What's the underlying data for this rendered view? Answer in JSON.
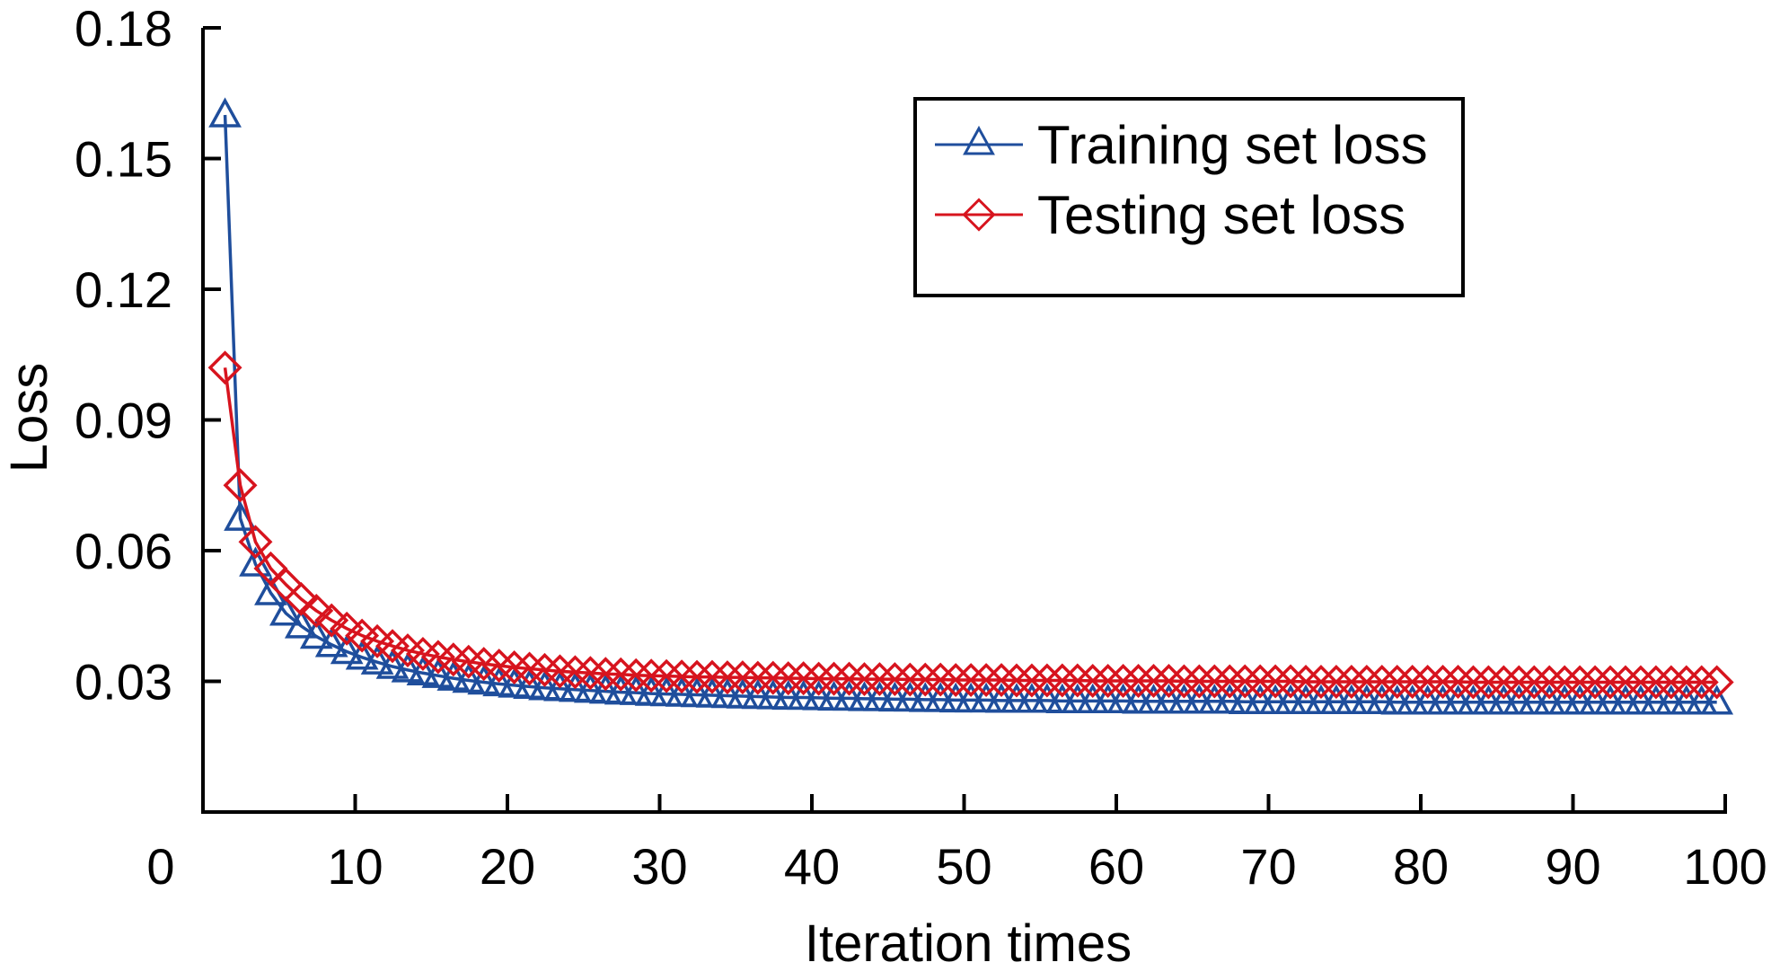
{
  "chart_data": {
    "type": "line",
    "title": "",
    "xlabel": "Iteration times",
    "ylabel": "Loss",
    "xlim": [
      0,
      100
    ],
    "ylim": [
      0,
      0.18
    ],
    "xticks": [
      "0",
      "10",
      "20",
      "30",
      "40",
      "50",
      "60",
      "70",
      "80",
      "90",
      "100"
    ],
    "xtick_values": [
      0,
      10,
      20,
      30,
      40,
      50,
      60,
      70,
      80,
      90,
      100
    ],
    "yticks": [
      "0.03",
      "0.06",
      "0.09",
      "0.12",
      "0.15",
      "0.18"
    ],
    "ytick_values": [
      0.03,
      0.06,
      0.09,
      0.12,
      0.15,
      0.18
    ],
    "grid": false,
    "legend_position": "top-right",
    "x": [
      1,
      2,
      3,
      4,
      5,
      6,
      7,
      8,
      9,
      10,
      11,
      12,
      13,
      14,
      15,
      16,
      17,
      18,
      19,
      20,
      21,
      22,
      23,
      24,
      25,
      26,
      27,
      28,
      29,
      30,
      31,
      32,
      33,
      34,
      35,
      36,
      37,
      38,
      39,
      40,
      41,
      42,
      43,
      44,
      45,
      46,
      47,
      48,
      49,
      50,
      51,
      52,
      53,
      54,
      55,
      56,
      57,
      58,
      59,
      60,
      61,
      62,
      63,
      64,
      65,
      66,
      67,
      68,
      69,
      70,
      71,
      72,
      73,
      74,
      75,
      76,
      77,
      78,
      79,
      80,
      81,
      82,
      83,
      84,
      85,
      86,
      87,
      88,
      89,
      90,
      91,
      92,
      93,
      94,
      95,
      96,
      97,
      98,
      99
    ],
    "series": [
      {
        "name": "Training set loss",
        "color": "#1f4e9c",
        "marker": "triangle",
        "values": [
          0.16,
          0.0674,
          0.0569,
          0.0503,
          0.0456,
          0.0427,
          0.0403,
          0.0384,
          0.0368,
          0.0355,
          0.0344,
          0.0334,
          0.0326,
          0.0319,
          0.0313,
          0.0307,
          0.0302,
          0.0298,
          0.0294,
          0.0291,
          0.0288,
          0.0285,
          0.0283,
          0.0281,
          0.0279,
          0.0277,
          0.0275,
          0.0274,
          0.0272,
          0.0271,
          0.027,
          0.0269,
          0.0268,
          0.0267,
          0.0266,
          0.0265,
          0.0264,
          0.0263,
          0.0263,
          0.0262,
          0.0261,
          0.0261,
          0.026,
          0.026,
          0.0259,
          0.0259,
          0.0258,
          0.0258,
          0.0257,
          0.0257,
          0.0257,
          0.0256,
          0.0256,
          0.0256,
          0.0256,
          0.0255,
          0.0255,
          0.0255,
          0.0255,
          0.0255,
          0.0254,
          0.0254,
          0.0254,
          0.0254,
          0.0254,
          0.0254,
          0.0254,
          0.0253,
          0.0253,
          0.0253,
          0.0253,
          0.0253,
          0.0253,
          0.0253,
          0.0253,
          0.0253,
          0.0253,
          0.0252,
          0.0252,
          0.0252,
          0.0252,
          0.0252,
          0.0252,
          0.0252,
          0.0252,
          0.0252,
          0.0252,
          0.0252,
          0.0252,
          0.0252,
          0.0252,
          0.0252,
          0.0252,
          0.0252,
          0.0252,
          0.0252,
          0.0252,
          0.0252,
          0.0252
        ]
      },
      {
        "name": "Testing set loss",
        "color": "#d7141e",
        "marker": "diamond",
        "values": [
          0.102,
          0.075,
          0.062,
          0.0559,
          0.0522,
          0.0489,
          0.0462,
          0.044,
          0.0421,
          0.0405,
          0.0392,
          0.0381,
          0.0371,
          0.0363,
          0.0356,
          0.035,
          0.0345,
          0.034,
          0.0336,
          0.0332,
          0.0329,
          0.0326,
          0.0323,
          0.0321,
          0.0319,
          0.0317,
          0.0316,
          0.0314,
          0.0313,
          0.0312,
          0.0311,
          0.031,
          0.031,
          0.0309,
          0.0309,
          0.0308,
          0.0308,
          0.0307,
          0.0307,
          0.0306,
          0.0306,
          0.0306,
          0.0305,
          0.0305,
          0.0305,
          0.0304,
          0.0304,
          0.0304,
          0.0303,
          0.0303,
          0.0303,
          0.0303,
          0.0302,
          0.0302,
          0.0302,
          0.0302,
          0.0302,
          0.0301,
          0.0301,
          0.0301,
          0.0301,
          0.0301,
          0.0301,
          0.03,
          0.03,
          0.03,
          0.03,
          0.03,
          0.03,
          0.03,
          0.03,
          0.0299,
          0.0299,
          0.0299,
          0.0299,
          0.0299,
          0.0299,
          0.0299,
          0.0299,
          0.0299,
          0.0299,
          0.0299,
          0.0298,
          0.0298,
          0.0298,
          0.0298,
          0.0298,
          0.0298,
          0.0298,
          0.0298,
          0.0298,
          0.0298,
          0.0298,
          0.0298,
          0.0298,
          0.0298,
          0.0298,
          0.0298,
          0.0298
        ]
      }
    ]
  }
}
